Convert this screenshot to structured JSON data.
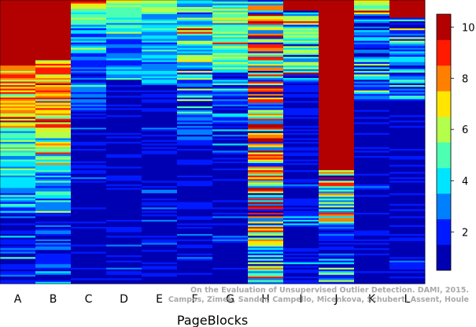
{
  "chart_data": {
    "type": "heatmap",
    "title": "",
    "xlabel": "PageBlocks",
    "ylabel": "",
    "categories": [
      "A",
      "B",
      "C",
      "D",
      "E",
      "F",
      "G",
      "H",
      "I",
      "J",
      "K",
      "L"
    ],
    "colorbar": {
      "min": 0.5,
      "max": 10.5,
      "ticks": [
        2,
        4,
        6,
        8,
        10
      ],
      "colormap": "jet"
    },
    "columns": [
      {
        "name": "A",
        "segments": [
          {
            "from": 0.0,
            "to": 0.23,
            "value": 10.3
          },
          {
            "from": 0.23,
            "to": 0.33,
            "value": 7.5,
            "noise": 2.2
          },
          {
            "from": 0.33,
            "to": 0.45,
            "value": 7.0,
            "noise": 2.3
          },
          {
            "from": 0.45,
            "to": 0.6,
            "value": 4.8,
            "noise": 1.8
          },
          {
            "from": 0.6,
            "to": 0.75,
            "value": 3.4,
            "noise": 1.6
          },
          {
            "from": 0.75,
            "to": 1.0,
            "value": 1.6,
            "noise": 1.3
          }
        ]
      },
      {
        "name": "B",
        "segments": [
          {
            "from": 0.0,
            "to": 0.21,
            "value": 10.3
          },
          {
            "from": 0.21,
            "to": 0.33,
            "value": 7.8,
            "noise": 2.2
          },
          {
            "from": 0.33,
            "to": 0.45,
            "value": 7.3,
            "noise": 2.2
          },
          {
            "from": 0.45,
            "to": 0.6,
            "value": 5.0,
            "noise": 1.8
          },
          {
            "from": 0.6,
            "to": 0.75,
            "value": 3.5,
            "noise": 1.6
          },
          {
            "from": 0.75,
            "to": 1.0,
            "value": 1.6,
            "noise": 1.3
          }
        ]
      },
      {
        "name": "C",
        "segments": [
          {
            "from": 0.0,
            "to": 0.03,
            "value": 7.2,
            "noise": 1.2
          },
          {
            "from": 0.03,
            "to": 0.08,
            "value": 5.0,
            "noise": 1.2
          },
          {
            "from": 0.08,
            "to": 0.2,
            "value": 3.2,
            "noise": 1.4
          },
          {
            "from": 0.2,
            "to": 0.4,
            "value": 2.2,
            "noise": 1.2
          },
          {
            "from": 0.4,
            "to": 1.0,
            "value": 0.9,
            "noise": 0.8
          }
        ]
      },
      {
        "name": "D",
        "segments": [
          {
            "from": 0.0,
            "to": 0.05,
            "value": 5.5,
            "noise": 1.0
          },
          {
            "from": 0.05,
            "to": 0.12,
            "value": 4.2,
            "noise": 1.2
          },
          {
            "from": 0.12,
            "to": 0.28,
            "value": 2.8,
            "noise": 1.2
          },
          {
            "from": 0.28,
            "to": 1.0,
            "value": 1.0,
            "noise": 0.8
          }
        ]
      },
      {
        "name": "E",
        "segments": [
          {
            "from": 0.0,
            "to": 0.05,
            "value": 5.6,
            "noise": 1.0
          },
          {
            "from": 0.05,
            "to": 0.15,
            "value": 3.6,
            "noise": 1.0
          },
          {
            "from": 0.15,
            "to": 0.3,
            "value": 3.0,
            "noise": 0.8
          },
          {
            "from": 0.3,
            "to": 1.0,
            "value": 1.0,
            "noise": 0.8
          }
        ]
      },
      {
        "name": "F",
        "segments": [
          {
            "from": 0.0,
            "to": 0.08,
            "value": 4.0,
            "noise": 3.5
          },
          {
            "from": 0.08,
            "to": 0.3,
            "value": 4.2,
            "noise": 2.5
          },
          {
            "from": 0.3,
            "to": 0.5,
            "value": 2.2,
            "noise": 1.6
          },
          {
            "from": 0.5,
            "to": 1.0,
            "value": 1.0,
            "noise": 0.8
          }
        ]
      },
      {
        "name": "G",
        "segments": [
          {
            "from": 0.0,
            "to": 0.25,
            "value": 5.0,
            "noise": 1.8
          },
          {
            "from": 0.25,
            "to": 0.55,
            "value": 2.2,
            "noise": 1.6
          },
          {
            "from": 0.55,
            "to": 1.0,
            "value": 1.0,
            "noise": 0.8
          }
        ]
      },
      {
        "name": "H",
        "segments": [
          {
            "from": 0.0,
            "to": 0.25,
            "value": 6.0,
            "noise": 4.5
          },
          {
            "from": 0.25,
            "to": 1.0,
            "value": 5.2,
            "noise": 4.5
          }
        ]
      },
      {
        "name": "I",
        "segments": [
          {
            "from": 0.0,
            "to": 0.04,
            "value": 10.2
          },
          {
            "from": 0.04,
            "to": 0.3,
            "value": 3.5,
            "noise": 3.0
          },
          {
            "from": 0.3,
            "to": 1.0,
            "value": 1.3,
            "noise": 1.2
          }
        ]
      },
      {
        "name": "J",
        "segments": [
          {
            "from": 0.0,
            "to": 0.6,
            "value": 10.3
          },
          {
            "from": 0.6,
            "to": 0.78,
            "value": 5.0,
            "noise": 4.0
          },
          {
            "from": 0.78,
            "to": 1.0,
            "value": 2.0,
            "noise": 1.8
          }
        ]
      },
      {
        "name": "K",
        "segments": [
          {
            "from": 0.0,
            "to": 0.05,
            "value": 7.2,
            "noise": 2.5
          },
          {
            "from": 0.05,
            "to": 0.35,
            "value": 2.6,
            "noise": 1.8
          },
          {
            "from": 0.35,
            "to": 1.0,
            "value": 1.0,
            "noise": 0.8
          }
        ]
      },
      {
        "name": "L",
        "segments": [
          {
            "from": 0.0,
            "to": 0.06,
            "value": 10.2
          },
          {
            "from": 0.06,
            "to": 0.35,
            "value": 3.0,
            "noise": 2.2
          },
          {
            "from": 0.35,
            "to": 1.0,
            "value": 1.0,
            "noise": 0.8
          }
        ]
      }
    ]
  },
  "watermark": {
    "line1": "On the Evaluation of Unsupervised Outlier Detection. DAMI, 2015.",
    "line2": "Campos, Zimek, Sander, Campello, Micenkova, Schubert, Assent, Houle"
  }
}
